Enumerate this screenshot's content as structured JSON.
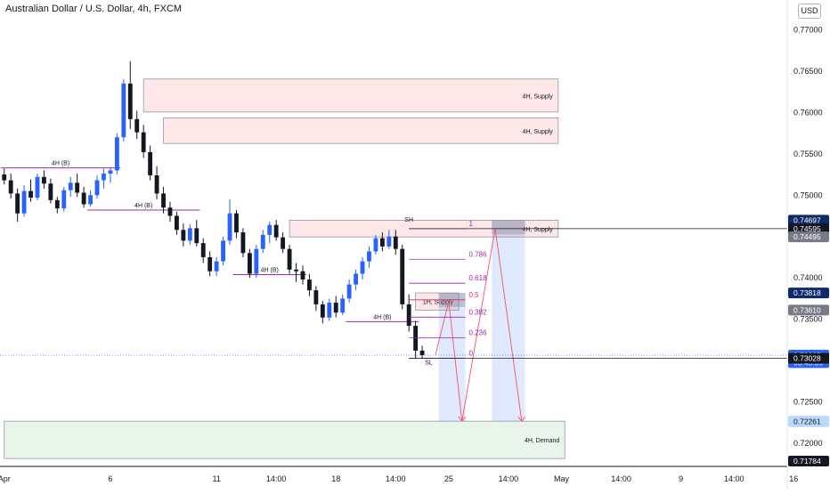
{
  "header": {
    "title": "Australian Dollar / U.S. Dollar, 4h, FXCM",
    "currency_button": "USD"
  },
  "chart_data": {
    "type": "candlestick",
    "title": "Australian Dollar / U.S. Dollar, 4h, FXCM",
    "y_axis": {
      "position": "right",
      "ylim": [
        0.7172,
        0.7736
      ],
      "ticks": [
        "0.77000",
        "0.76500",
        "0.76000",
        "0.75500",
        "0.75000",
        "0.74500",
        "0.74000",
        "0.73500",
        "0.73000",
        "0.72500",
        "0.72000"
      ],
      "tick_values": [
        0.77,
        0.765,
        0.76,
        0.755,
        0.75,
        0.745,
        0.74,
        0.735,
        0.73,
        0.725,
        0.72
      ]
    },
    "x_axis": {
      "labels": [
        "Apr",
        "6",
        "11",
        "14:00",
        "18",
        "14:00",
        "25",
        "14:00",
        "May",
        "14:00",
        "9",
        "14:00",
        "16"
      ],
      "label_bars": [
        0,
        16,
        32,
        41,
        50,
        59,
        67,
        76,
        84,
        93,
        102,
        110,
        119
      ]
    },
    "price_labels": [
      {
        "text": "0.74697",
        "value": 0.74697,
        "color": "#0d2a6e",
        "text_color": "#ffffff"
      },
      {
        "text": "0.74595",
        "value": 0.74595,
        "color": "#131722",
        "text_color": "#ffffff"
      },
      {
        "text": "0.74495",
        "value": 0.74495,
        "color": "#787b86",
        "text_color": "#ffffff"
      },
      {
        "text": "0.73818",
        "value": 0.73818,
        "color": "#0d2a6e",
        "text_color": "#ffffff"
      },
      {
        "text": "0.73610",
        "value": 0.7361,
        "color": "#787b86",
        "text_color": "#ffffff"
      },
      {
        "text": "0.73065",
        "value": 0.73065,
        "color": "#2962ff",
        "text_color": "#ffffff"
      },
      {
        "text": "03:43:39",
        "value": 0.72975,
        "color": "#2962ff",
        "text_color": "#ffffff"
      },
      {
        "text": "0.73028",
        "value": 0.73028,
        "color": "#131722",
        "text_color": "#ffffff"
      },
      {
        "text": "0.72267",
        "value": 0.72267,
        "color": "#bbd9fb",
        "text_color": "#131722"
      },
      {
        "text": "0.72261",
        "value": 0.72261,
        "color": "#bbd9fb",
        "text_color": "#131722"
      },
      {
        "text": "0.71784",
        "value": 0.71784,
        "color": "#131722",
        "text_color": "#ffffff"
      }
    ],
    "zones": [
      {
        "label": "4H, Supply",
        "type": "supply",
        "from_bar": 21,
        "to_bar": 83,
        "top": 0.76405,
        "bottom": 0.76005
      },
      {
        "label": "4H, Supply",
        "type": "supply",
        "from_bar": 24,
        "to_bar": 83,
        "top": 0.75935,
        "bottom": 0.75625
      },
      {
        "label": "4H, Supply",
        "type": "supply",
        "from_bar": 43,
        "to_bar": 83,
        "top": 0.74697,
        "bottom": 0.74495
      },
      {
        "label": "1H, Supply",
        "type": "supply",
        "from_bar": 62,
        "to_bar": 68,
        "top": 0.73818,
        "bottom": 0.7361
      },
      {
        "label": "4H, Demand",
        "type": "demand",
        "from_bar": 0,
        "to_bar": 84,
        "top": 0.72267,
        "bottom": 0.71815
      }
    ],
    "levels": [
      {
        "label": "4H (B)",
        "value": 0.7533,
        "from_bar": 0,
        "to_bar": 18
      },
      {
        "label": "4H (B)",
        "value": 0.7482,
        "from_bar": 13,
        "to_bar": 30
      },
      {
        "label": "4H (B)",
        "value": 0.7404,
        "from_bar": 35,
        "to_bar": 46
      },
      {
        "label": "4H (B)",
        "value": 0.7347,
        "from_bar": 52,
        "to_bar": 63
      }
    ],
    "swing_labels": [
      {
        "text": "SH",
        "value": 0.7468,
        "bar": 61
      },
      {
        "text": "SL",
        "value": 0.7295,
        "bar": 64
      }
    ],
    "fibonacci": {
      "from_bar": 61,
      "to_bar": 70,
      "levels": [
        {
          "ratio": "1",
          "value": 0.74595,
          "color": "#9c27b0"
        },
        {
          "ratio": "0.786",
          "value": 0.74225,
          "color": "#9c27b0"
        },
        {
          "ratio": "0.618",
          "value": 0.73935,
          "color": "#9c27b0"
        },
        {
          "ratio": "0.5",
          "value": 0.73735,
          "color": "#e91e63"
        },
        {
          "ratio": "0.382",
          "value": 0.73525,
          "color": "#9c27b0"
        },
        {
          "ratio": "0.236",
          "value": 0.73275,
          "color": "#9c27b0"
        },
        {
          "ratio": "0",
          "value": 0.73028,
          "color": "#9c27b0"
        }
      ]
    },
    "projections": [
      {
        "from_bar": 66,
        "to_bar": 70,
        "top": 0.73818,
        "bottom": 0.72267
      },
      {
        "from_bar": 74,
        "to_bar": 79,
        "top": 0.74697,
        "bottom": 0.72267
      }
    ],
    "projection_path": [
      [
        65,
        0.73065
      ],
      [
        67,
        0.73715
      ],
      [
        69,
        0.72267
      ],
      [
        74,
        0.74595
      ],
      [
        78,
        0.72267
      ]
    ],
    "last_price": 0.73065,
    "candles": [
      [
        0.7525,
        0.7532,
        0.7513,
        0.7518
      ],
      [
        0.7518,
        0.7526,
        0.7496,
        0.7502
      ],
      [
        0.7502,
        0.7508,
        0.7468,
        0.7478
      ],
      [
        0.7478,
        0.7512,
        0.7474,
        0.7505
      ],
      [
        0.7505,
        0.7519,
        0.7492,
        0.7497
      ],
      [
        0.7497,
        0.7526,
        0.7494,
        0.7522
      ],
      [
        0.7522,
        0.753,
        0.7508,
        0.7514
      ],
      [
        0.7514,
        0.752,
        0.749,
        0.7494
      ],
      [
        0.7494,
        0.7498,
        0.7478,
        0.7484
      ],
      [
        0.7484,
        0.751,
        0.748,
        0.7506
      ],
      [
        0.7506,
        0.7522,
        0.7498,
        0.7515
      ],
      [
        0.7515,
        0.7526,
        0.7498,
        0.7503
      ],
      [
        0.7503,
        0.751,
        0.7485,
        0.7489
      ],
      [
        0.7489,
        0.7506,
        0.7486,
        0.75
      ],
      [
        0.75,
        0.7524,
        0.7496,
        0.7518
      ],
      [
        0.7518,
        0.7532,
        0.7508,
        0.7526
      ],
      [
        0.7526,
        0.7534,
        0.7515,
        0.753
      ],
      [
        0.753,
        0.7575,
        0.7525,
        0.757
      ],
      [
        0.757,
        0.764,
        0.7565,
        0.7635
      ],
      [
        0.7635,
        0.7662,
        0.758,
        0.7592
      ],
      [
        0.7592,
        0.7602,
        0.7568,
        0.7576
      ],
      [
        0.7576,
        0.7585,
        0.7545,
        0.7552
      ],
      [
        0.7552,
        0.756,
        0.7518,
        0.7524
      ],
      [
        0.7524,
        0.7535,
        0.7495,
        0.7502
      ],
      [
        0.7502,
        0.751,
        0.7478,
        0.7485
      ],
      [
        0.7485,
        0.7492,
        0.7468,
        0.7475
      ],
      [
        0.7475,
        0.748,
        0.7452,
        0.7458
      ],
      [
        0.7458,
        0.7466,
        0.7438,
        0.7445
      ],
      [
        0.7445,
        0.7465,
        0.744,
        0.746
      ],
      [
        0.746,
        0.747,
        0.7438,
        0.7442
      ],
      [
        0.7442,
        0.7448,
        0.7418,
        0.7425
      ],
      [
        0.7425,
        0.7432,
        0.7402,
        0.7408
      ],
      [
        0.7408,
        0.7425,
        0.7402,
        0.742
      ],
      [
        0.742,
        0.745,
        0.7415,
        0.7445
      ],
      [
        0.7445,
        0.7495,
        0.744,
        0.7478
      ],
      [
        0.7478,
        0.7482,
        0.7448,
        0.7455
      ],
      [
        0.7455,
        0.746,
        0.7425,
        0.743
      ],
      [
        0.743,
        0.7435,
        0.74,
        0.7405
      ],
      [
        0.7405,
        0.744,
        0.74,
        0.7435
      ],
      [
        0.7435,
        0.7458,
        0.743,
        0.7452
      ],
      [
        0.7452,
        0.7468,
        0.7442,
        0.7464
      ],
      [
        0.7464,
        0.747,
        0.7445,
        0.7449
      ],
      [
        0.7449,
        0.7455,
        0.743,
        0.7435
      ],
      [
        0.7435,
        0.744,
        0.7405,
        0.741
      ],
      [
        0.741,
        0.7418,
        0.7395,
        0.7408
      ],
      [
        0.7408,
        0.7415,
        0.7392,
        0.7398
      ],
      [
        0.7398,
        0.7405,
        0.7378,
        0.7385
      ],
      [
        0.7385,
        0.739,
        0.736,
        0.7368
      ],
      [
        0.7368,
        0.7372,
        0.7345,
        0.7352
      ],
      [
        0.7352,
        0.7375,
        0.7348,
        0.737
      ],
      [
        0.737,
        0.7378,
        0.7352,
        0.7358
      ],
      [
        0.7358,
        0.738,
        0.7355,
        0.7375
      ],
      [
        0.7375,
        0.7398,
        0.737,
        0.7392
      ],
      [
        0.7392,
        0.741,
        0.7385,
        0.7405
      ],
      [
        0.7405,
        0.7425,
        0.7398,
        0.742
      ],
      [
        0.742,
        0.7438,
        0.7412,
        0.7432
      ],
      [
        0.7432,
        0.7452,
        0.7428,
        0.7448
      ],
      [
        0.7448,
        0.7455,
        0.7432,
        0.7438
      ],
      [
        0.7438,
        0.7458,
        0.7435,
        0.745
      ],
      [
        0.745,
        0.7458,
        0.7428,
        0.7435
      ],
      [
        0.7435,
        0.744,
        0.7362,
        0.7368
      ],
      [
        0.7368,
        0.738,
        0.7335,
        0.7342
      ],
      [
        0.7342,
        0.7348,
        0.7302,
        0.7312
      ],
      [
        0.7312,
        0.7318,
        0.7302,
        0.73065
      ]
    ]
  }
}
